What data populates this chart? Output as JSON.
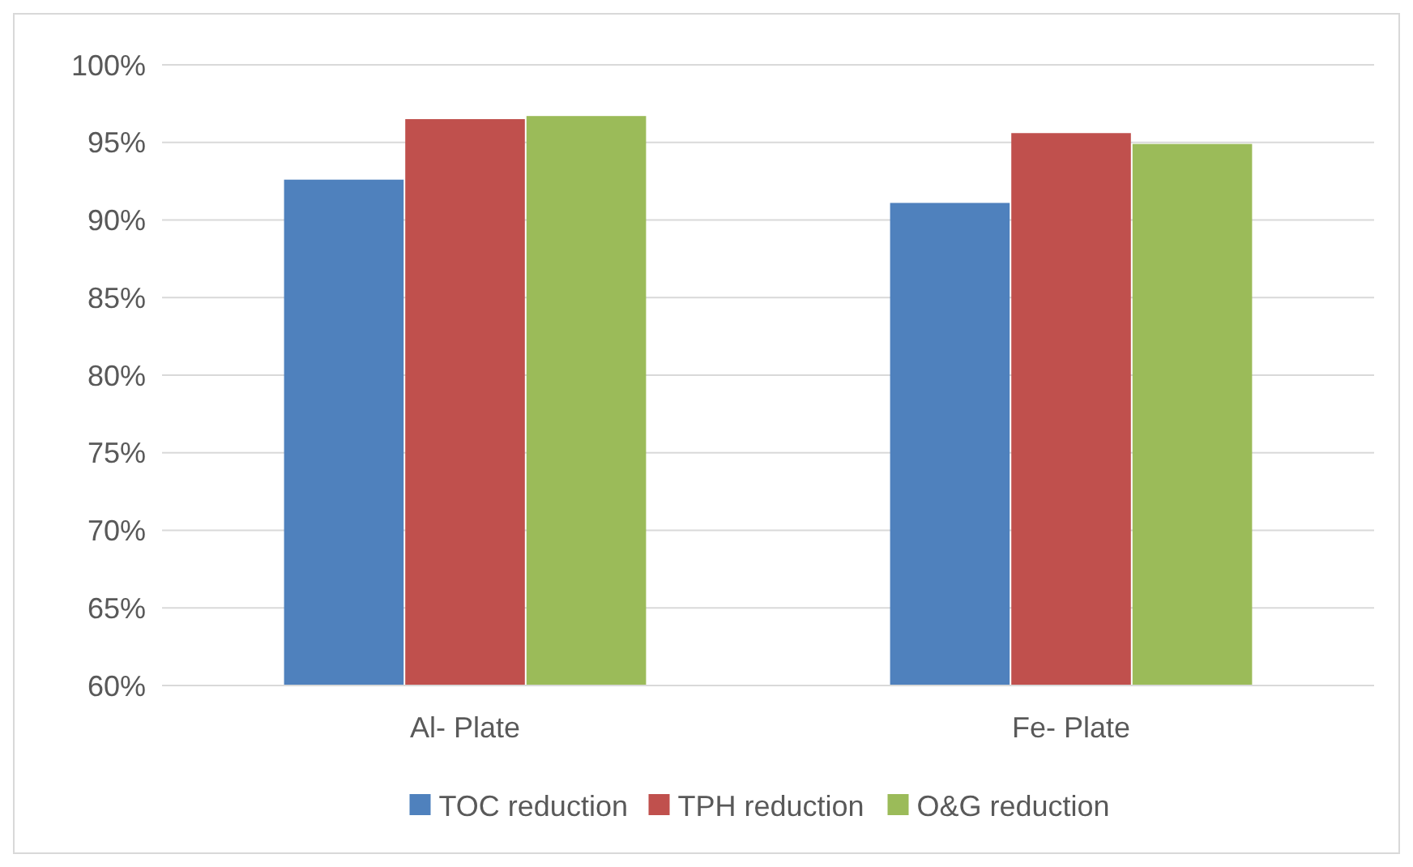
{
  "chart_data": {
    "type": "bar",
    "categories": [
      "Al- Plate",
      "Fe- Plate"
    ],
    "series": [
      {
        "name": "TOC reduction",
        "color": "#4f81bd",
        "values": [
          92.6,
          91.1
        ]
      },
      {
        "name": "TPH reduction",
        "color": "#c0504d",
        "values": [
          96.5,
          95.6
        ]
      },
      {
        "name": "O&G reduction",
        "color": "#9bbb59",
        "values": [
          96.7,
          94.9
        ]
      }
    ],
    "ylim": [
      60,
      100
    ],
    "yticks": [
      {
        "value": 60,
        "label": "60%"
      },
      {
        "value": 65,
        "label": "65%"
      },
      {
        "value": 70,
        "label": "70%"
      },
      {
        "value": 75,
        "label": "75%"
      },
      {
        "value": 80,
        "label": "80%"
      },
      {
        "value": 85,
        "label": "85%"
      },
      {
        "value": 90,
        "label": "90%"
      },
      {
        "value": 95,
        "label": "95%"
      },
      {
        "value": 100,
        "label": "100%"
      }
    ],
    "grid": "y",
    "legend": "bottom"
  }
}
